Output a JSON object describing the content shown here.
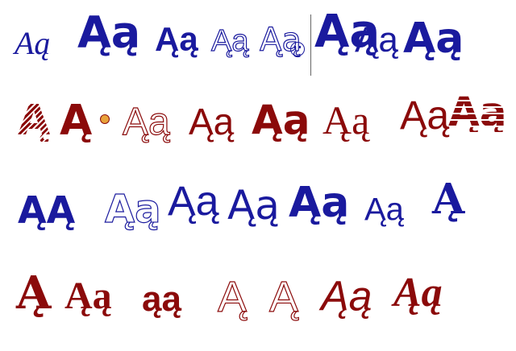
{
  "rows": [
    {
      "color": "#1a1a9e",
      "glyphs": [
        "Aą",
        "Ąą",
        "Ąą",
        "Ąą",
        "Ąą",
        "Ąą",
        "Ąą",
        "Ąą"
      ]
    },
    {
      "color": "#8b0a0a",
      "glyphs": [
        "Ą",
        "Ą",
        "Ąą",
        "Ąą",
        "Ąą",
        "Ąą",
        "Ąą",
        "Ąą"
      ]
    },
    {
      "color": "#1a1a9e",
      "glyphs": [
        "ĄĄ",
        "Ąą",
        "Ąą",
        "Ąą",
        "Ąą",
        "Ąą",
        "Ą"
      ]
    },
    {
      "color": "#8b0a0a",
      "glyphs": [
        "Ą",
        "Ąą",
        "ąą",
        "Ą",
        "Ą",
        "Ąą",
        "Ąą"
      ]
    }
  ]
}
